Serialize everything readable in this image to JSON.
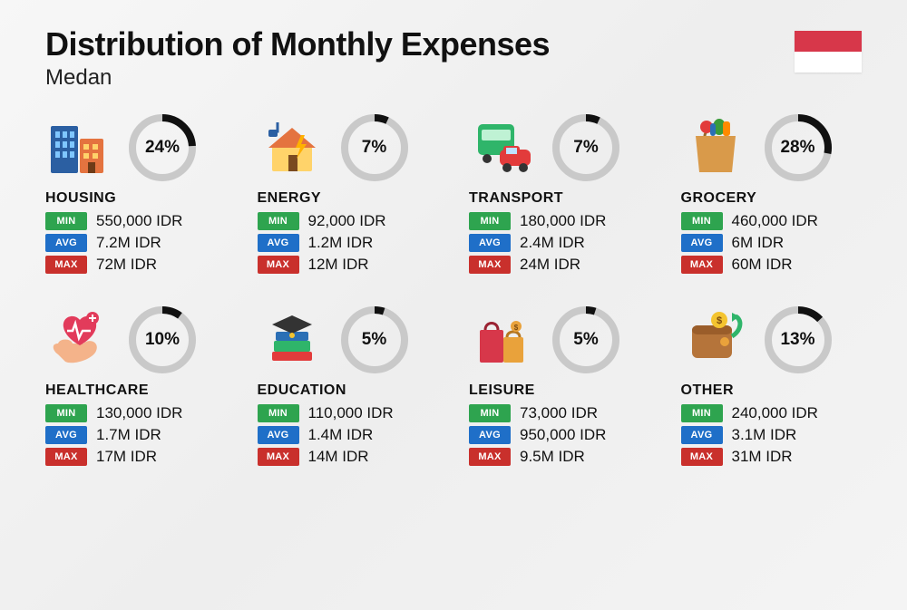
{
  "title": "Distribution of Monthly Expenses",
  "subtitle": "Medan",
  "flag": {
    "top_color": "#d7374a",
    "bottom_color": "#ffffff"
  },
  "pill_labels": {
    "min": "MIN",
    "avg": "AVG",
    "max": "MAX"
  },
  "pill_colors": {
    "min": "#2ea44f",
    "avg": "#1f6fc8",
    "max": "#c9302c"
  },
  "donut": {
    "radius": 33,
    "stroke": 8,
    "track_color": "#c9c9c9",
    "fill_color": "#111111",
    "background": "transparent"
  },
  "categories": [
    {
      "id": "housing",
      "name": "HOUSING",
      "percent": 24,
      "min": "550,000 IDR",
      "avg": "7.2M IDR",
      "max": "72M IDR",
      "icon": "housing"
    },
    {
      "id": "energy",
      "name": "ENERGY",
      "percent": 7,
      "min": "92,000 IDR",
      "avg": "1.2M IDR",
      "max": "12M IDR",
      "icon": "energy"
    },
    {
      "id": "transport",
      "name": "TRANSPORT",
      "percent": 7,
      "min": "180,000 IDR",
      "avg": "2.4M IDR",
      "max": "24M IDR",
      "icon": "transport"
    },
    {
      "id": "grocery",
      "name": "GROCERY",
      "percent": 28,
      "min": "460,000 IDR",
      "avg": "6M IDR",
      "max": "60M IDR",
      "icon": "grocery"
    },
    {
      "id": "healthcare",
      "name": "HEALTHCARE",
      "percent": 10,
      "min": "130,000 IDR",
      "avg": "1.7M IDR",
      "max": "17M IDR",
      "icon": "healthcare"
    },
    {
      "id": "education",
      "name": "EDUCATION",
      "percent": 5,
      "min": "110,000 IDR",
      "avg": "1.4M IDR",
      "max": "14M IDR",
      "icon": "education"
    },
    {
      "id": "leisure",
      "name": "LEISURE",
      "percent": 5,
      "min": "73,000 IDR",
      "avg": "950,000 IDR",
      "max": "9.5M IDR",
      "icon": "leisure"
    },
    {
      "id": "other",
      "name": "OTHER",
      "percent": 13,
      "min": "240,000 IDR",
      "avg": "3.1M IDR",
      "max": "31M IDR",
      "icon": "other"
    }
  ]
}
